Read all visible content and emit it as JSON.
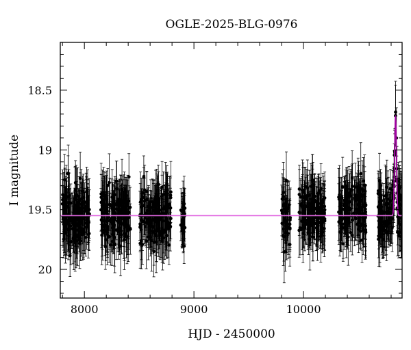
{
  "chart_data": {
    "type": "scatter",
    "title": "OGLE-2025-BLG-0976",
    "xlabel": "HJD - 2450000",
    "ylabel": "I magnitude",
    "xlim": [
      7780,
      10900
    ],
    "ylim": [
      20.24,
      18.1
    ],
    "y_inverted": true,
    "x_ticks": [
      8000,
      9000,
      10000
    ],
    "y_ticks": [
      18.5,
      19,
      19.5,
      20
    ],
    "x_tick_labels": [
      "8000",
      "9000",
      "10000"
    ],
    "y_tick_labels": [
      "18.5",
      "19",
      "19.5",
      "20"
    ],
    "x_minor_step": 200,
    "y_minor_step": 0.1,
    "grid": false,
    "colors": {
      "data": "#000000",
      "model": "#e066e0",
      "model_peak": "#a000a0"
    },
    "seasons": [
      {
        "start": 7790,
        "end": 8050,
        "mean_mag": 19.55,
        "spread": 0.28,
        "err": 0.2,
        "n": 160
      },
      {
        "start": 8150,
        "end": 8420,
        "mean_mag": 19.53,
        "spread": 0.26,
        "err": 0.2,
        "n": 160
      },
      {
        "start": 8500,
        "end": 8790,
        "mean_mag": 19.55,
        "spread": 0.27,
        "err": 0.2,
        "n": 170
      },
      {
        "start": 8880,
        "end": 8920,
        "mean_mag": 19.58,
        "spread": 0.25,
        "err": 0.18,
        "n": 25
      },
      {
        "start": 9800,
        "end": 9880,
        "mean_mag": 19.55,
        "spread": 0.25,
        "err": 0.2,
        "n": 45
      },
      {
        "start": 9960,
        "end": 10200,
        "mean_mag": 19.5,
        "spread": 0.24,
        "err": 0.2,
        "n": 150
      },
      {
        "start": 10320,
        "end": 10570,
        "mean_mag": 19.5,
        "spread": 0.24,
        "err": 0.2,
        "n": 150
      },
      {
        "start": 10680,
        "end": 10900,
        "mean_mag": 19.52,
        "spread": 0.24,
        "err": 0.2,
        "n": 140
      }
    ],
    "model": {
      "baseline": 19.55,
      "t0": 10840,
      "peak_mag": 18.72,
      "width": 12
    }
  }
}
